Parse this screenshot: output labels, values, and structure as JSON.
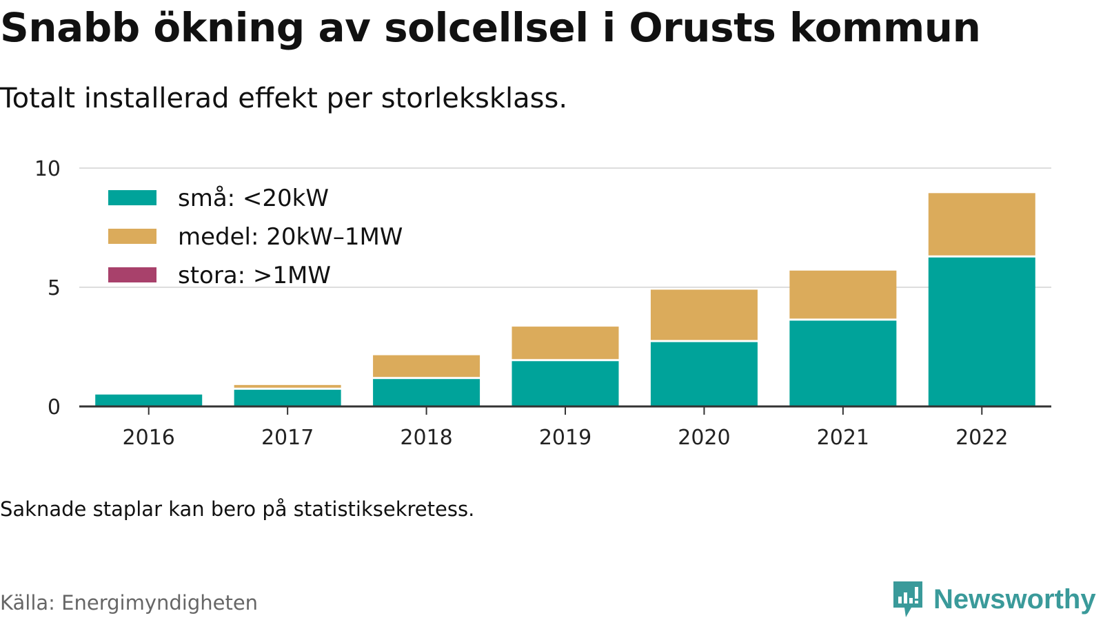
{
  "header": {
    "title": "Snabb ökning av solcellsel i Orusts kommun",
    "subtitle": "Totalt installerad effekt per storleksklass."
  },
  "footer": {
    "note": "Saknade staplar kan bero på statistiksekretess.",
    "source": "Källa: Energimyndigheten",
    "brand": "Newsworthy"
  },
  "colors": {
    "small": "#00a39a",
    "medium": "#dbab5b",
    "large": "#a8416b",
    "grid": "#dddddd",
    "axis": "#333333",
    "brand": "#3a9a9a"
  },
  "chart_data": {
    "type": "bar",
    "stacked": true,
    "categories": [
      "2016",
      "2017",
      "2018",
      "2019",
      "2020",
      "2021",
      "2022"
    ],
    "series": [
      {
        "name": "små: <20kW",
        "color": "#00a39a",
        "values": [
          0.5,
          0.7,
          1.15,
          1.9,
          2.7,
          3.6,
          6.25
        ]
      },
      {
        "name": "medel: 20kW–1MW",
        "color": "#dbab5b",
        "values": [
          0,
          0.2,
          1.0,
          1.45,
          2.2,
          2.1,
          2.7
        ]
      },
      {
        "name": "stora: >1MW",
        "color": "#a8416b",
        "values": [
          0,
          0,
          0,
          0,
          0,
          0,
          0
        ]
      }
    ],
    "ylim": [
      0,
      10
    ],
    "yticks": [
      "0",
      "5",
      "10"
    ],
    "grid": true,
    "legend_position": "top-left"
  }
}
